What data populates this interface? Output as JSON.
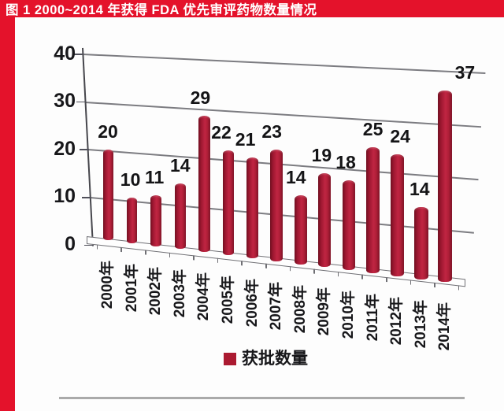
{
  "figure": {
    "title": "图 1  2000~2014 年获得 FDA 优先审评药物数量情况"
  },
  "chart_data": {
    "type": "bar",
    "style": "3d-cylinder-column",
    "title": "2000~2014 年获得 FDA 优先审评药物数量情况",
    "categories": [
      "2000年",
      "2001年",
      "2002年",
      "2003年",
      "2004年",
      "2005年",
      "2006年",
      "2007年",
      "2008年",
      "2009年",
      "2010年",
      "2011年",
      "2012年",
      "2013年",
      "2014年"
    ],
    "series": [
      {
        "name": "获批数量",
        "values": [
          20,
          10,
          11,
          14,
          29,
          22,
          21,
          23,
          14,
          19,
          18,
          25,
          24,
          14,
          37
        ]
      }
    ],
    "value_labels_shown": true,
    "yticks": [
      "0",
      "10",
      "20",
      "30",
      "40"
    ],
    "ylim": [
      0,
      40
    ],
    "xlabel": "",
    "ylabel": "",
    "grid": true,
    "legend": {
      "label": "获批数量",
      "position": "bottom"
    },
    "colors": {
      "bar": "#AB1A31",
      "gridline": "#7C7C81",
      "header": "#E4122B",
      "text": "#17171A"
    }
  },
  "legend": {
    "label": "获批数量"
  },
  "colors": {
    "header_red": "#E4122B",
    "bar_red": "#AB1A31",
    "rule_gray": "#AAAAAA"
  }
}
